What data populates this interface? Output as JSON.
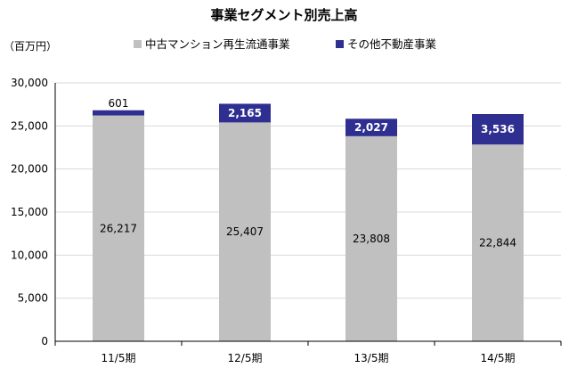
{
  "chart_data": {
    "type": "bar",
    "stacked": true,
    "title": "事業セグメント別売上高",
    "unit_label": "（百万円）",
    "categories": [
      "11/5期",
      "12/5期",
      "13/5期",
      "14/5期"
    ],
    "series": [
      {
        "name": "中古マンション再生流通事業",
        "color": "#c0c0c0",
        "values": [
          26217,
          25407,
          23808,
          22844
        ],
        "labels": [
          "26,217",
          "25,407",
          "23,808",
          "22,844"
        ]
      },
      {
        "name": "その他不動産事業",
        "color": "#2f2f91",
        "values": [
          601,
          2165,
          2027,
          3536
        ],
        "labels": [
          "601",
          "2,165",
          "2,027",
          "3,536"
        ]
      }
    ],
    "ylim": [
      0,
      30000
    ],
    "yticks": [
      0,
      5000,
      10000,
      15000,
      20000,
      25000,
      30000
    ],
    "ytick_labels": [
      "0",
      "5,000",
      "10,000",
      "15,000",
      "20,000",
      "25,000",
      "30,000"
    ],
    "grid": true,
    "legend_position": "top"
  }
}
